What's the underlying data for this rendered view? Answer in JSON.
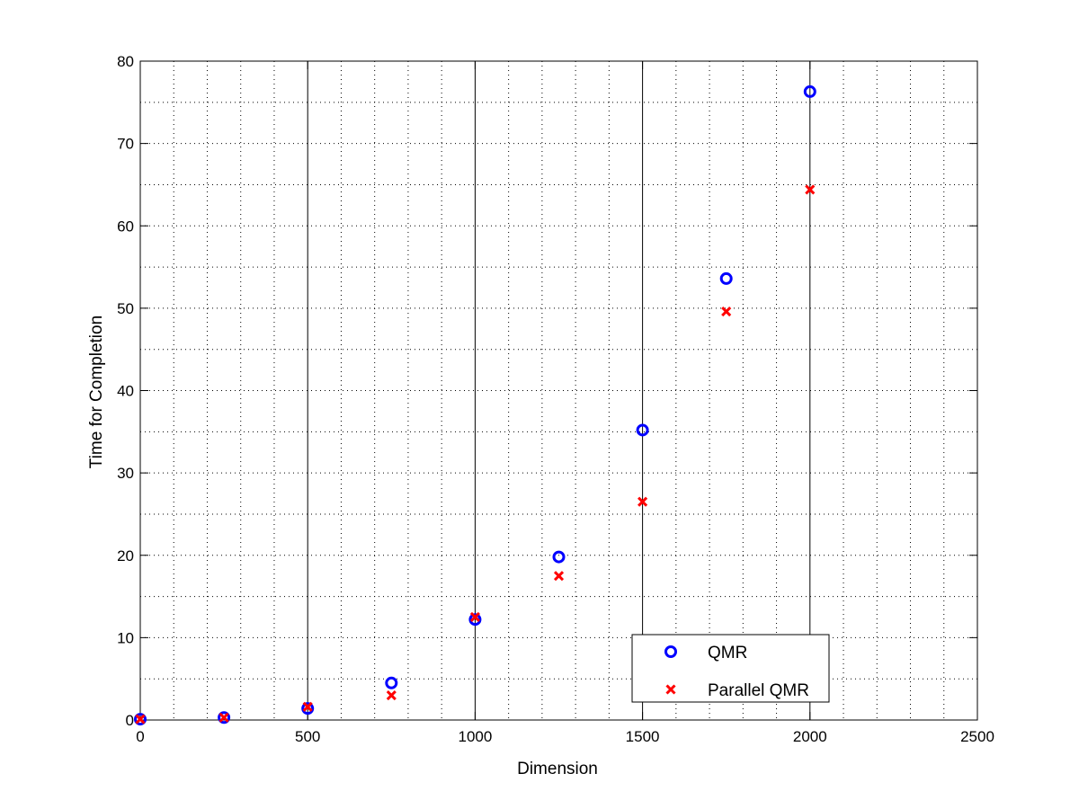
{
  "chart_data": {
    "type": "scatter",
    "title": "",
    "xlabel": "Dimension",
    "ylabel": "Time for Completion",
    "xlim": [
      0,
      2500
    ],
    "ylim": [
      0,
      80
    ],
    "x_ticks": [
      0,
      500,
      1000,
      1500,
      2000,
      2500
    ],
    "y_ticks": [
      0,
      10,
      20,
      30,
      40,
      50,
      60,
      70,
      80
    ],
    "grid": "dotted major and minor gridlines; solid vertical lines at x = 500, 1000, 1500, 2000",
    "legend_position": "bottom-right",
    "series": [
      {
        "name": "QMR",
        "marker": "circle",
        "color": "#0000ff",
        "x": [
          0,
          250,
          500,
          750,
          1000,
          1250,
          1500,
          1750,
          2000
        ],
        "y": [
          0.1,
          0.3,
          1.4,
          4.5,
          12.2,
          19.8,
          35.2,
          53.6,
          76.3
        ]
      },
      {
        "name": "Parallel QMR",
        "marker": "x",
        "color": "#ff0000",
        "x": [
          0,
          250,
          500,
          750,
          1000,
          1250,
          1500,
          1750,
          2000
        ],
        "y": [
          0.1,
          0.3,
          1.6,
          3.0,
          12.5,
          17.5,
          26.5,
          49.6,
          64.4
        ]
      }
    ]
  }
}
